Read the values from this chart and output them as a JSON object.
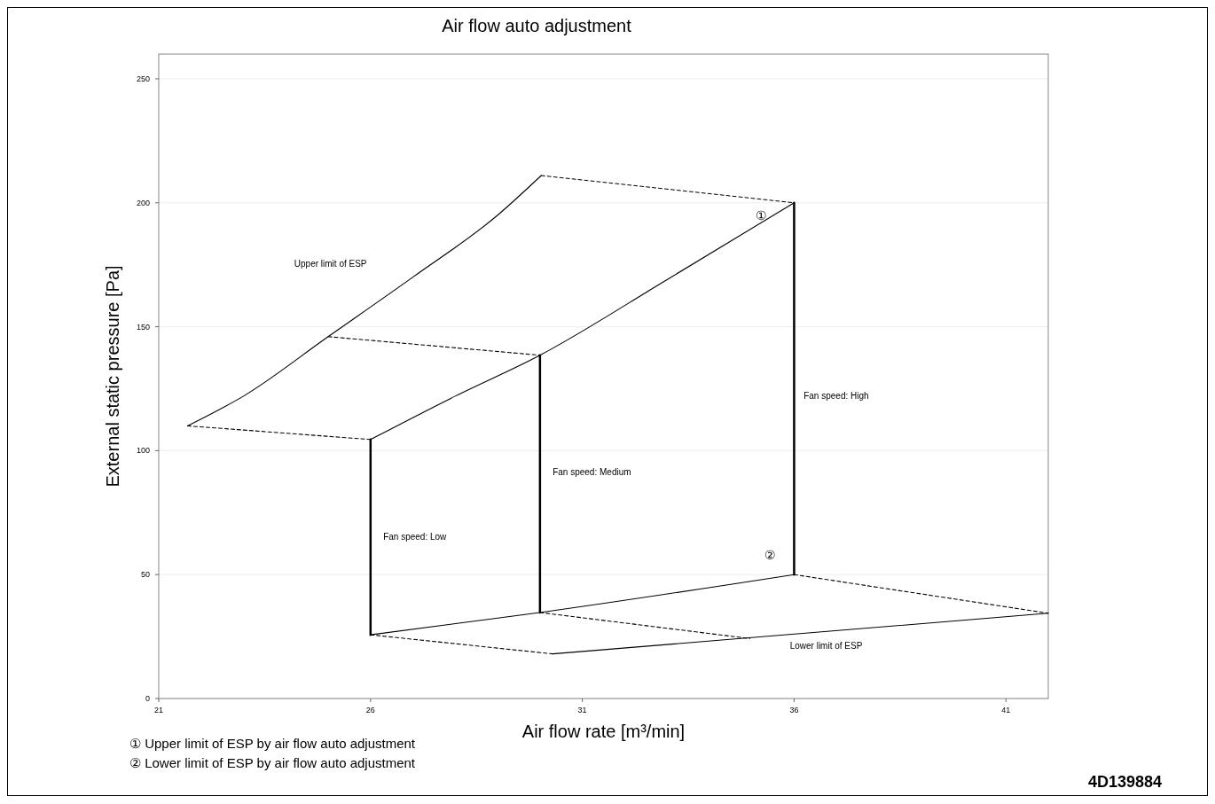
{
  "chart_data": {
    "type": "line",
    "title": "Air flow auto adjustment",
    "xlabel": "Air flow rate [m³/min]",
    "ylabel": "External static pressure [Pa]",
    "xlim": [
      21,
      42
    ],
    "ylim": [
      0,
      260
    ],
    "xticks": [
      21,
      26,
      31,
      36,
      41
    ],
    "yticks": [
      0,
      50,
      100,
      150,
      200,
      250
    ],
    "grid": "y",
    "series": [
      {
        "color": "#000000",
        "line_style": "solid",
        "x": [
          21.68,
          23,
          25,
          27,
          29,
          30.03
        ],
        "values": [
          110,
          122,
          146,
          170,
          195,
          211
        ]
      },
      {
        "color": "#000000",
        "line_style": "solid",
        "x": [
          26,
          28,
          30,
          33,
          36
        ],
        "values": [
          104.5,
          122,
          138.5,
          169,
          200
        ]
      },
      {
        "color": "#000000",
        "line_style": "dashed",
        "x": [
          21.68,
          26
        ],
        "values": [
          110,
          104.5
        ]
      },
      {
        "color": "#000000",
        "line_style": "dashed",
        "x": [
          25,
          30
        ],
        "values": [
          146,
          138.5
        ]
      },
      {
        "color": "#000000",
        "line_style": "dashed",
        "x": [
          30.03,
          36
        ],
        "values": [
          211,
          200
        ]
      },
      {
        "color": "#000000",
        "line_style": "solid",
        "x": [
          26,
          26
        ],
        "values": [
          104.5,
          25.7
        ]
      },
      {
        "color": "#000000",
        "line_style": "solid",
        "x": [
          30,
          30
        ],
        "values": [
          138.5,
          34.7
        ]
      },
      {
        "color": "#000000",
        "line_style": "solid",
        "x": [
          36,
          36
        ],
        "values": [
          200,
          50
        ]
      },
      {
        "color": "#000000",
        "line_style": "solid",
        "x": [
          26,
          30,
          36
        ],
        "values": [
          25.7,
          34.7,
          50
        ]
      },
      {
        "color": "#000000",
        "line_style": "solid",
        "x": [
          30.3,
          42
        ],
        "values": [
          18,
          34.4
        ]
      },
      {
        "color": "#000000",
        "line_style": "dashed",
        "x": [
          26,
          30.3
        ],
        "values": [
          25.7,
          18
        ]
      },
      {
        "color": "#000000",
        "line_style": "dashed",
        "x": [
          30,
          34.95
        ],
        "values": [
          34.7,
          24.2
        ]
      },
      {
        "color": "#000000",
        "line_style": "dashed",
        "x": [
          36,
          42
        ],
        "values": [
          50,
          34.4
        ]
      }
    ],
    "annotations": [
      "Upper limit of ESP",
      "①",
      "Fan speed: High",
      "Fan speed: Medium",
      "Fan speed: Low",
      "②",
      "Lower limit of ESP",
      "① Upper limit of ESP by air flow auto adjustment",
      "② Lower limit of ESP by air flow auto adjustment",
      "4D139884"
    ]
  }
}
